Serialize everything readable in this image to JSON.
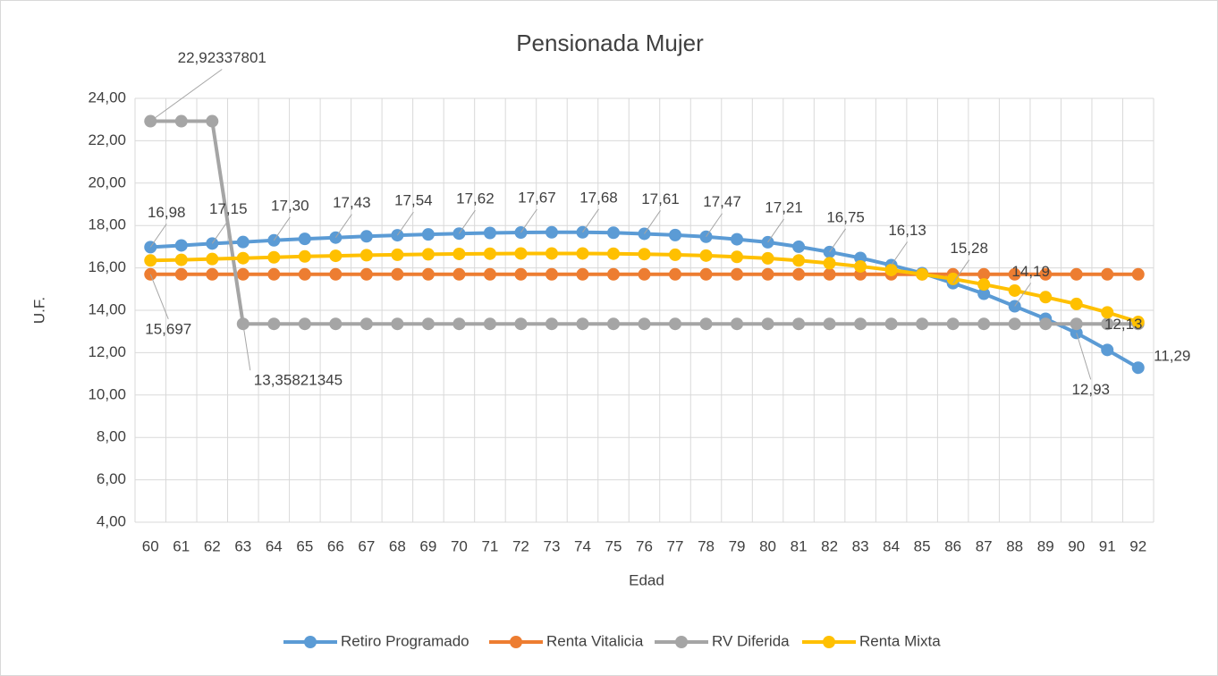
{
  "chart_data": {
    "type": "line",
    "title": "Pensionada Mujer",
    "x_label": "Edad",
    "y_label": "U.F.",
    "categories": [
      "60",
      "61",
      "62",
      "63",
      "64",
      "65",
      "66",
      "67",
      "68",
      "69",
      "70",
      "71",
      "72",
      "73",
      "74",
      "75",
      "76",
      "77",
      "78",
      "79",
      "80",
      "81",
      "82",
      "83",
      "84",
      "85",
      "86",
      "87",
      "88",
      "89",
      "90",
      "91",
      "92"
    ],
    "ylim": [
      4,
      24
    ],
    "yticks": [
      {
        "value": 4,
        "label": "4,00"
      },
      {
        "value": 6,
        "label": "6,00"
      },
      {
        "value": 8,
        "label": "8,00"
      },
      {
        "value": 10,
        "label": "10,00"
      },
      {
        "value": 12,
        "label": "12,00"
      },
      {
        "value": 14,
        "label": "14,00"
      },
      {
        "value": 16,
        "label": "16,00"
      },
      {
        "value": 18,
        "label": "18,00"
      },
      {
        "value": 20,
        "label": "20,00"
      },
      {
        "value": 22,
        "label": "22,00"
      },
      {
        "value": 24,
        "label": "24,00"
      }
    ],
    "grid": true,
    "legend": "bottom",
    "series": [
      {
        "name": "Retiro Programado",
        "color": "#5b9bd5",
        "values": [
          16.98,
          17.06,
          17.15,
          17.22,
          17.3,
          17.37,
          17.43,
          17.49,
          17.54,
          17.58,
          17.62,
          17.65,
          17.67,
          17.68,
          17.68,
          17.66,
          17.61,
          17.55,
          17.47,
          17.35,
          17.21,
          17.0,
          16.75,
          16.47,
          16.13,
          15.75,
          15.28,
          14.78,
          14.19,
          13.6,
          12.93,
          12.13,
          11.29
        ],
        "value_labels": [
          "16,98",
          null,
          "17,15",
          null,
          "17,30",
          null,
          "17,43",
          null,
          "17,54",
          null,
          "17,62",
          null,
          "17,67",
          null,
          "17,68",
          null,
          "17,61",
          null,
          "17,47",
          null,
          "17,21",
          null,
          "16,75",
          null,
          "16,13",
          null,
          "15,28",
          null,
          "14,19",
          null,
          "12,93",
          "12,13",
          "11,29"
        ]
      },
      {
        "name": "Renta Vitalicia",
        "color": "#ed7d31",
        "values": [
          15.697,
          15.697,
          15.697,
          15.697,
          15.697,
          15.697,
          15.697,
          15.697,
          15.697,
          15.697,
          15.697,
          15.697,
          15.697,
          15.697,
          15.697,
          15.697,
          15.697,
          15.697,
          15.697,
          15.697,
          15.697,
          15.697,
          15.697,
          15.697,
          15.697,
          15.697,
          15.697,
          15.697,
          15.697,
          15.697,
          15.697,
          15.697,
          15.697
        ],
        "value_labels": [
          "15,697",
          null,
          null,
          null,
          null,
          null,
          null,
          null,
          null,
          null,
          null,
          null,
          null,
          null,
          null,
          null,
          null,
          null,
          null,
          null,
          null,
          null,
          null,
          null,
          null,
          null,
          null,
          null,
          null,
          null,
          null,
          null,
          null
        ]
      },
      {
        "name": "RV Diferida",
        "color": "#a5a5a5",
        "values": [
          22.92337801,
          22.92337801,
          22.92337801,
          13.35821345,
          13.35821345,
          13.35821345,
          13.35821345,
          13.35821345,
          13.35821345,
          13.35821345,
          13.35821345,
          13.35821345,
          13.35821345,
          13.35821345,
          13.35821345,
          13.35821345,
          13.35821345,
          13.35821345,
          13.35821345,
          13.35821345,
          13.35821345,
          13.35821345,
          13.35821345,
          13.35821345,
          13.35821345,
          13.35821345,
          13.35821345,
          13.35821345,
          13.35821345,
          13.35821345,
          13.35821345,
          13.35821345,
          13.35821345
        ],
        "value_labels": [
          "22,92337801",
          null,
          null,
          "13,35821345",
          null,
          null,
          null,
          null,
          null,
          null,
          null,
          null,
          null,
          null,
          null,
          null,
          null,
          null,
          null,
          null,
          null,
          null,
          null,
          null,
          null,
          null,
          null,
          null,
          null,
          null,
          null,
          null,
          null
        ]
      },
      {
        "name": "Renta Mixta",
        "color": "#ffc000",
        "values": [
          16.35,
          16.38,
          16.42,
          16.46,
          16.5,
          16.54,
          16.57,
          16.6,
          16.62,
          16.64,
          16.66,
          16.67,
          16.68,
          16.68,
          16.68,
          16.67,
          16.65,
          16.62,
          16.58,
          16.52,
          16.45,
          16.35,
          16.22,
          16.07,
          15.9,
          15.7,
          15.48,
          15.22,
          14.93,
          14.62,
          14.3,
          13.9,
          13.45
        ]
      }
    ]
  }
}
